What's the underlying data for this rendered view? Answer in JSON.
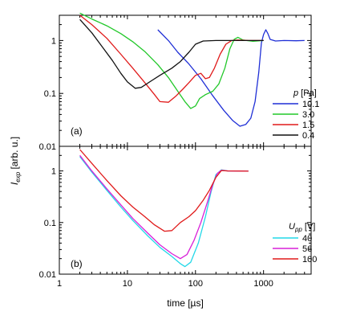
{
  "chart_data": [
    {
      "type": "line",
      "panel_label": "(a)",
      "x_scale": "log",
      "y_scale": "log",
      "xlim": [
        1,
        5000
      ],
      "ylim": [
        0.01,
        3
      ],
      "ylabel_main": "I",
      "ylabel_sub": "exp",
      "ylabel_unit": " [arb. u.]",
      "legend_title_var": "p",
      "legend_title_unit": " [Pa]",
      "legend_position": "bottom-right",
      "series": [
        {
          "name": "10.1",
          "color": "#1f2fd6",
          "points": [
            [
              28,
              1.6
            ],
            [
              40,
              1.0
            ],
            [
              55,
              0.6
            ],
            [
              80,
              0.36
            ],
            [
              120,
              0.19
            ],
            [
              180,
              0.09
            ],
            [
              260,
              0.048
            ],
            [
              350,
              0.031
            ],
            [
              450,
              0.024
            ],
            [
              550,
              0.026
            ],
            [
              650,
              0.034
            ],
            [
              750,
              0.07
            ],
            [
              850,
              0.25
            ],
            [
              930,
              0.9
            ],
            [
              1000,
              1.3
            ],
            [
              1080,
              1.6
            ],
            [
              1160,
              1.35
            ],
            [
              1250,
              1.05
            ],
            [
              1500,
              0.98
            ],
            [
              2000,
              1.0
            ],
            [
              3000,
              0.99
            ],
            [
              4000,
              1.0
            ]
          ]
        },
        {
          "name": "3.0",
          "color": "#22c82a",
          "points": [
            [
              2,
              3.3
            ],
            [
              3,
              2.55
            ],
            [
              5,
              1.9
            ],
            [
              8,
              1.35
            ],
            [
              12,
              0.95
            ],
            [
              18,
              0.62
            ],
            [
              28,
              0.35
            ],
            [
              40,
              0.2
            ],
            [
              55,
              0.11
            ],
            [
              70,
              0.07
            ],
            [
              85,
              0.052
            ],
            [
              100,
              0.058
            ],
            [
              115,
              0.08
            ],
            [
              140,
              0.095
            ],
            [
              180,
              0.11
            ],
            [
              220,
              0.15
            ],
            [
              270,
              0.3
            ],
            [
              320,
              0.7
            ],
            [
              370,
              1.05
            ],
            [
              420,
              1.15
            ],
            [
              500,
              1.02
            ],
            [
              700,
              0.97
            ],
            [
              1000,
              1.0
            ]
          ]
        },
        {
          "name": "1.5",
          "color": "#e01a1a",
          "points": [
            [
              2,
              3.0
            ],
            [
              3,
              2.0
            ],
            [
              5,
              1.1
            ],
            [
              8,
              0.55
            ],
            [
              12,
              0.3
            ],
            [
              18,
              0.16
            ],
            [
              25,
              0.095
            ],
            [
              30,
              0.07
            ],
            [
              40,
              0.068
            ],
            [
              52,
              0.09
            ],
            [
              65,
              0.12
            ],
            [
              80,
              0.16
            ],
            [
              100,
              0.22
            ],
            [
              120,
              0.24
            ],
            [
              140,
              0.19
            ],
            [
              160,
              0.2
            ],
            [
              190,
              0.3
            ],
            [
              230,
              0.55
            ],
            [
              280,
              0.85
            ],
            [
              340,
              1.0
            ],
            [
              420,
              1.02
            ],
            [
              600,
              1.0
            ],
            [
              1000,
              1.0
            ]
          ]
        },
        {
          "name": "0.4",
          "color": "#111111",
          "points": [
            [
              2,
              2.5
            ],
            [
              3,
              1.4
            ],
            [
              4,
              0.85
            ],
            [
              6,
              0.42
            ],
            [
              8,
              0.24
            ],
            [
              10,
              0.165
            ],
            [
              13,
              0.125
            ],
            [
              16,
              0.13
            ],
            [
              22,
              0.17
            ],
            [
              30,
              0.22
            ],
            [
              45,
              0.3
            ],
            [
              60,
              0.4
            ],
            [
              80,
              0.6
            ],
            [
              100,
              0.85
            ],
            [
              130,
              0.98
            ],
            [
              200,
              1.0
            ],
            [
              400,
              1.0
            ],
            [
              1000,
              1.0
            ]
          ]
        }
      ]
    },
    {
      "type": "line",
      "panel_label": "(b)",
      "x_scale": "log",
      "y_scale": "log",
      "xlim": [
        1,
        5000
      ],
      "ylim": [
        0.01,
        3
      ],
      "xlabel": "time [µs]",
      "x_ticks": [
        "1",
        "10",
        "100",
        "1000"
      ],
      "y_ticks": [
        "0.01",
        "0.1",
        "1"
      ],
      "legend_title_var": "U",
      "legend_title_sub": "pp",
      "legend_title_unit": " [V]",
      "legend_position": "bottom-right",
      "series": [
        {
          "name": "40",
          "color": "#22d8e8",
          "points": [
            [
              2,
              1.9
            ],
            [
              3,
              0.95
            ],
            [
              5,
              0.42
            ],
            [
              8,
              0.2
            ],
            [
              12,
              0.11
            ],
            [
              20,
              0.055
            ],
            [
              30,
              0.033
            ],
            [
              45,
              0.022
            ],
            [
              60,
              0.016
            ],
            [
              70,
              0.014
            ],
            [
              85,
              0.017
            ],
            [
              110,
              0.04
            ],
            [
              140,
              0.13
            ],
            [
              170,
              0.4
            ],
            [
              200,
              0.85
            ],
            [
              240,
              1.05
            ],
            [
              300,
              1.0
            ],
            [
              600,
              0.99
            ]
          ]
        },
        {
          "name": "56",
          "color": "#d820d8",
          "points": [
            [
              2,
              2.0
            ],
            [
              3,
              1.0
            ],
            [
              5,
              0.45
            ],
            [
              8,
              0.22
            ],
            [
              12,
              0.12
            ],
            [
              20,
              0.062
            ],
            [
              30,
              0.037
            ],
            [
              45,
              0.025
            ],
            [
              60,
              0.02
            ],
            [
              75,
              0.024
            ],
            [
              95,
              0.045
            ],
            [
              120,
              0.1
            ],
            [
              150,
              0.25
            ],
            [
              180,
              0.55
            ],
            [
              210,
              0.9
            ],
            [
              240,
              1.03
            ],
            [
              300,
              1.0
            ],
            [
              600,
              0.99
            ]
          ]
        },
        {
          "name": "100",
          "color": "#e01a1a",
          "points": [
            [
              2,
              2.6
            ],
            [
              3,
              1.4
            ],
            [
              5,
              0.65
            ],
            [
              8,
              0.33
            ],
            [
              12,
              0.2
            ],
            [
              18,
              0.13
            ],
            [
              25,
              0.09
            ],
            [
              35,
              0.068
            ],
            [
              45,
              0.07
            ],
            [
              60,
              0.1
            ],
            [
              80,
              0.13
            ],
            [
              100,
              0.17
            ],
            [
              130,
              0.27
            ],
            [
              160,
              0.42
            ],
            [
              200,
              0.75
            ],
            [
              240,
              1.02
            ],
            [
              300,
              1.0
            ],
            [
              600,
              0.99
            ]
          ]
        }
      ]
    }
  ]
}
